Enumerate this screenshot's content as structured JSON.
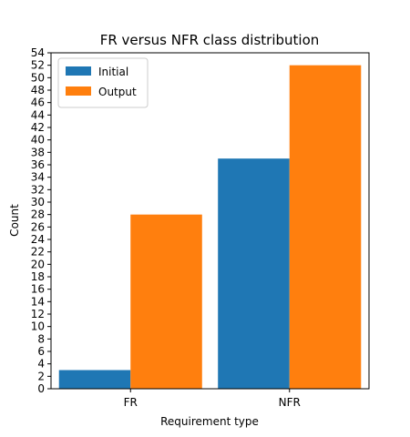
{
  "chart_data": {
    "type": "bar",
    "title": "FR versus NFR class distribution",
    "xlabel": "Requirement type",
    "ylabel": "Count",
    "categories": [
      "FR",
      "NFR"
    ],
    "series": [
      {
        "name": "Initial",
        "values": [
          3,
          37
        ],
        "color": "#1f77b4"
      },
      {
        "name": "Output",
        "values": [
          28,
          52
        ],
        "color": "#ff7f0e"
      }
    ],
    "ylim": [
      0,
      54
    ],
    "ytick_step": 2,
    "legend_position": "top-left",
    "grid": false
  }
}
